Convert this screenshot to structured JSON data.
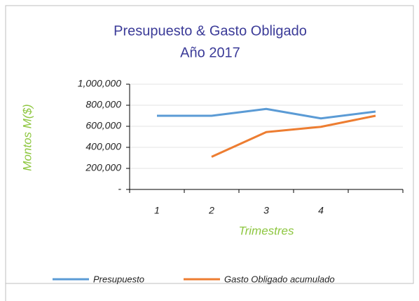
{
  "chart_data": {
    "type": "line",
    "title": "Presupuesto & Gasto Obligado",
    "subtitle": "Año 2017",
    "y_label": "Montos M($)",
    "x_label": "Trimestres",
    "categories": [
      "1",
      "2",
      "3",
      "4",
      null
    ],
    "series": [
      {
        "name": "Presupuesto",
        "color": "#5b9bd5",
        "values": [
          700000,
          700000,
          765000,
          675000,
          740000
        ]
      },
      {
        "name": "Gasto Obligado acumulado",
        "color": "#ed7d31",
        "values": [
          null,
          310000,
          545000,
          595000,
          700000
        ]
      }
    ],
    "ylim": [
      0,
      1000000
    ],
    "yticks": [
      {
        "value": 0,
        "label": "-"
      },
      {
        "value": 200000,
        "label": "200,000"
      },
      {
        "value": 400000,
        "label": "400,000"
      },
      {
        "value": 600000,
        "label": "600,000"
      },
      {
        "value": 800000,
        "label": "800,000"
      },
      {
        "value": 1000000,
        "label": "1,000,000"
      }
    ],
    "grid": true,
    "legend": "bottom"
  }
}
